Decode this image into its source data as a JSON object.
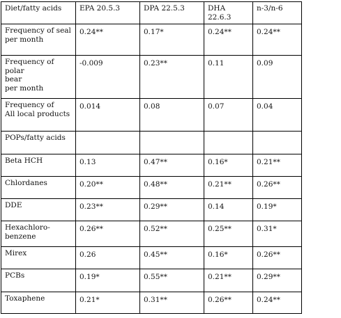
{
  "header": [
    "Diet/fatty acids",
    "EPA 20.5.3",
    "DPA 22.5.3",
    "DHA 22.6.3",
    "n-3/n-6"
  ],
  "rows": [
    {
      "cells": [
        "Frequency of seal\nper month",
        "0.24**",
        "0.17*",
        "0.24**",
        "0.24**"
      ]
    },
    {
      "cells": [
        "Frequency of polar\nbear\nper month",
        "-0.009",
        "0.23**",
        "0.11",
        "0.09"
      ]
    },
    {
      "cells": [
        "Frequency of\nAll local products",
        "0.014",
        "0.08",
        "0.07",
        "0.04"
      ]
    },
    {
      "cells": [
        "POPs/fatty acids",
        "",
        "",
        "",
        ""
      ]
    },
    {
      "cells": [
        "Beta HCH",
        "0.13",
        "0.47**",
        "0.16*",
        "0.21**"
      ]
    },
    {
      "cells": [
        "Chlordanes",
        "0.20**",
        "0.48**",
        "0.21**",
        "0.26**"
      ]
    },
    {
      "cells": [
        "DDE",
        "0.23**",
        "0.29**",
        "0.14",
        "0.19*"
      ]
    },
    {
      "cells": [
        "Hexachloro-\nbenzene",
        "0.26**",
        "0.52**",
        "0.25**",
        "0.31*"
      ]
    },
    {
      "cells": [
        "Mirex",
        "0.26",
        "0.45**",
        "0.16*",
        "0.26**"
      ]
    },
    {
      "cells": [
        "PCBs",
        "0.19*",
        "0.55**",
        "0.21**",
        "0.29**"
      ]
    },
    {
      "cells": [
        "Toxaphene",
        "0.21*",
        "0.31**",
        "0.26**",
        "0.24**"
      ]
    }
  ]
}
